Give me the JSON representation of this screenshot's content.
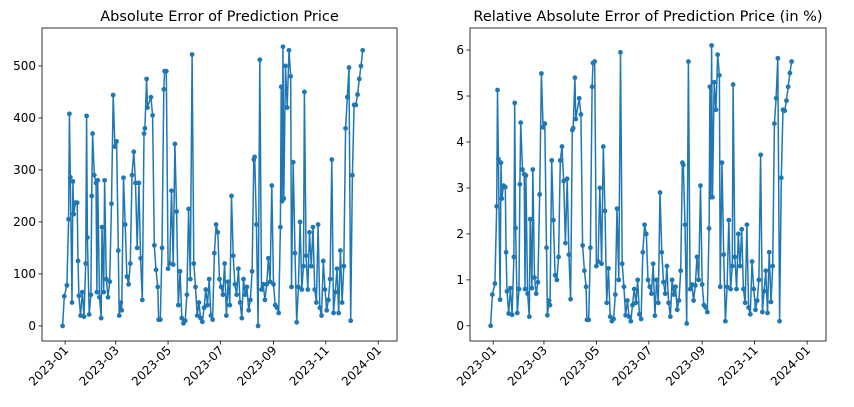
{
  "chart_data": [
    {
      "type": "line",
      "title": "Absolute Error of Prediction Price",
      "color": "#1f77b4",
      "x": [
        -3,
        -1,
        2,
        4,
        5,
        6,
        8,
        9,
        10,
        12,
        14,
        15,
        16,
        18,
        20,
        22,
        24,
        25,
        26,
        28,
        30,
        31,
        32,
        34,
        36,
        37,
        38,
        40,
        42,
        43,
        45,
        46,
        48,
        50,
        52,
        54,
        56,
        58,
        60,
        62,
        63,
        65,
        66,
        68,
        70,
        72,
        74,
        76,
        78,
        80,
        82,
        84,
        86,
        88,
        90,
        92,
        93,
        95,
        96,
        100,
        102,
        104,
        106,
        108,
        109,
        111,
        113,
        115,
        116,
        118,
        120,
        122,
        124,
        126,
        128,
        130,
        132,
        134,
        136,
        138,
        140,
        142,
        144,
        146,
        148,
        150,
        152,
        154,
        156,
        158,
        160,
        162,
        164,
        166,
        168,
        170,
        172,
        174,
        176,
        178,
        180,
        182,
        184,
        186,
        188,
        190,
        192,
        194,
        196,
        198,
        200,
        202,
        204,
        206,
        208,
        210,
        212,
        214,
        216,
        218,
        220,
        221,
        223,
        225,
        227,
        229,
        231,
        233,
        235,
        237,
        239,
        241,
        243,
        245,
        247,
        249,
        251,
        252,
        253,
        254,
        255,
        257,
        259,
        261,
        263,
        264,
        266,
        268,
        270,
        272,
        274,
        276,
        278,
        279,
        281,
        283,
        285,
        287,
        289,
        291,
        293,
        295,
        297,
        299,
        301,
        303,
        305,
        307,
        309,
        311,
        313,
        315,
        317,
        319,
        321,
        323,
        325,
        327,
        329,
        331,
        333,
        335,
        337,
        339,
        341,
        343,
        345,
        347
      ],
      "values": [
        0,
        57,
        78,
        205,
        408,
        286,
        45,
        278,
        215,
        237,
        237,
        125,
        58,
        20,
        65,
        18,
        120,
        404,
        170,
        22,
        60,
        250,
        370,
        290,
        275,
        65,
        280,
        55,
        15,
        190,
        65,
        280,
        90,
        55,
        85,
        235,
        444,
        345,
        355,
        145,
        20,
        45,
        30,
        285,
        195,
        95,
        80,
        120,
        290,
        335,
        275,
        150,
        275,
        130,
        50,
        370,
        380,
        475,
        420,
        440,
        405,
        155,
        108,
        75,
        12,
        12,
        150,
        455,
        490,
        490,
        110,
        120,
        260,
        118,
        350,
        220,
        40,
        105,
        15,
        5,
        10,
        60,
        225,
        90,
        522,
        120,
        75,
        20,
        45,
        15,
        8,
        35,
        70,
        40,
        90,
        20,
        12,
        140,
        195,
        180,
        90,
        75,
        60,
        120,
        20,
        85,
        40,
        250,
        135,
        80,
        60,
        110,
        45,
        15,
        90,
        60,
        75,
        30,
        50,
        105,
        320,
        325,
        195,
        0,
        512,
        70,
        80,
        50,
        80,
        130,
        85,
        270,
        80,
        40,
        35,
        25,
        190,
        460,
        240,
        537,
        245,
        500,
        420,
        530,
        480,
        75,
        315,
        140,
        7,
        75,
        200,
        70,
        115,
        450,
        135,
        70,
        180,
        115,
        190,
        70,
        45,
        195,
        35,
        20,
        125,
        70,
        30,
        50,
        90,
        320,
        25,
        65,
        110,
        25,
        145,
        45,
        115,
        380,
        440,
        497,
        10,
        290,
        425,
        425,
        445,
        475,
        500,
        530
      ],
      "xlim": [
        -27,
        387
      ],
      "xticks": [
        {
          "value": 0,
          "label": "2023-01"
        },
        {
          "value": 59,
          "label": "2023-03"
        },
        {
          "value": 120,
          "label": "2023-05"
        },
        {
          "value": 181,
          "label": "2023-07"
        },
        {
          "value": 243,
          "label": "2023-09"
        },
        {
          "value": 304,
          "label": "2023-11"
        },
        {
          "value": 365,
          "label": "2024-01"
        }
      ],
      "ylim": [
        -29,
        573
      ],
      "yticks": [
        0,
        100,
        200,
        300,
        400,
        500
      ]
    },
    {
      "type": "line",
      "title": "Relative Absolute Error of Prediction Price (in %)",
      "color": "#1f77b4",
      "x": [
        -3,
        -1,
        2,
        4,
        5,
        6,
        8,
        9,
        10,
        12,
        14,
        15,
        16,
        18,
        20,
        22,
        24,
        25,
        26,
        28,
        30,
        31,
        32,
        34,
        36,
        37,
        38,
        40,
        42,
        43,
        45,
        46,
        48,
        50,
        52,
        54,
        56,
        58,
        60,
        62,
        63,
        65,
        66,
        68,
        70,
        72,
        74,
        76,
        78,
        80,
        82,
        84,
        86,
        88,
        90,
        92,
        93,
        95,
        96,
        100,
        102,
        104,
        106,
        108,
        109,
        111,
        113,
        115,
        116,
        118,
        120,
        122,
        124,
        126,
        128,
        130,
        132,
        134,
        136,
        138,
        140,
        142,
        144,
        146,
        148,
        150,
        152,
        154,
        156,
        158,
        160,
        162,
        164,
        166,
        168,
        170,
        172,
        174,
        176,
        178,
        180,
        182,
        184,
        186,
        188,
        190,
        192,
        194,
        196,
        198,
        200,
        202,
        204,
        206,
        208,
        210,
        212,
        214,
        216,
        218,
        220,
        221,
        223,
        225,
        227,
        229,
        231,
        233,
        235,
        237,
        239,
        241,
        243,
        245,
        247,
        249,
        251,
        252,
        253,
        254,
        255,
        257,
        259,
        261,
        263,
        264,
        266,
        268,
        270,
        272,
        274,
        276,
        278,
        279,
        281,
        283,
        285,
        287,
        289,
        291,
        293,
        295,
        297,
        299,
        301,
        303,
        305,
        307,
        309,
        311,
        313,
        315,
        317,
        319,
        321,
        323,
        325,
        327,
        329,
        331,
        333,
        335,
        337,
        339,
        341,
        343,
        345,
        347
      ],
      "values": [
        0,
        0.68,
        0.92,
        2.6,
        5.13,
        3.63,
        0.57,
        3.55,
        2.77,
        3.05,
        3.02,
        1.6,
        0.75,
        0.27,
        0.82,
        0.24,
        1.5,
        4.85,
        2.13,
        0.28,
        0.8,
        3.08,
        4.42,
        3.4,
        3.3,
        0.8,
        3.27,
        0.7,
        0.2,
        2.32,
        0.82,
        3.4,
        1.05,
        0.7,
        0.95,
        2.86,
        5.49,
        4.32,
        4.4,
        1.7,
        0.23,
        0.55,
        0.45,
        3.6,
        2.3,
        1.1,
        1.0,
        1.5,
        3.6,
        3.9,
        3.15,
        1.8,
        3.2,
        1.55,
        0.58,
        4.26,
        4.3,
        5.4,
        4.5,
        4.95,
        4.6,
        1.75,
        1.2,
        0.85,
        0.13,
        0.13,
        1.7,
        5.2,
        5.72,
        5.75,
        1.3,
        1.4,
        3.0,
        1.35,
        3.9,
        2.5,
        0.5,
        1.25,
        0.2,
        0.1,
        0.15,
        0.68,
        2.55,
        1.0,
        5.95,
        1.35,
        0.85,
        0.23,
        0.55,
        0.2,
        0.1,
        0.45,
        0.8,
        0.5,
        1.0,
        0.25,
        0.15,
        1.6,
        2.2,
        2.0,
        1.0,
        0.85,
        0.7,
        1.35,
        0.22,
        1.0,
        0.5,
        2.9,
        1.6,
        0.95,
        0.7,
        1.3,
        0.5,
        0.2,
        1.0,
        0.68,
        0.85,
        0.35,
        0.55,
        1.2,
        3.55,
        3.5,
        2.2,
        0.05,
        5.75,
        0.8,
        0.9,
        0.55,
        0.88,
        1.5,
        1.0,
        3.05,
        0.9,
        0.45,
        0.4,
        0.3,
        2.12,
        5.2,
        2.8,
        6.1,
        2.8,
        5.3,
        4.7,
        5.9,
        5.45,
        0.85,
        3.55,
        1.55,
        0.1,
        0.85,
        2.3,
        0.8,
        1.3,
        5.25,
        1.5,
        0.8,
        2.0,
        1.3,
        2.1,
        0.8,
        0.5,
        2.2,
        0.4,
        0.25,
        1.4,
        0.8,
        0.35,
        0.55,
        1.0,
        3.72,
        0.3,
        0.75,
        1.2,
        0.28,
        1.6,
        0.52,
        1.3,
        4.4,
        4.95,
        5.82,
        0.1,
        3.22,
        4.7,
        4.68,
        4.9,
        5.2,
        5.5,
        5.75
      ],
      "xlim": [
        -27,
        387
      ],
      "xticks": [
        {
          "value": 0,
          "label": "2023-01"
        },
        {
          "value": 59,
          "label": "2023-03"
        },
        {
          "value": 120,
          "label": "2023-05"
        },
        {
          "value": 181,
          "label": "2023-07"
        },
        {
          "value": 243,
          "label": "2023-09"
        },
        {
          "value": 304,
          "label": "2023-11"
        },
        {
          "value": 365,
          "label": "2024-01"
        }
      ],
      "ylim": [
        -0.33,
        6.48
      ],
      "yticks": [
        0,
        1,
        2,
        3,
        4,
        5,
        6
      ]
    }
  ]
}
